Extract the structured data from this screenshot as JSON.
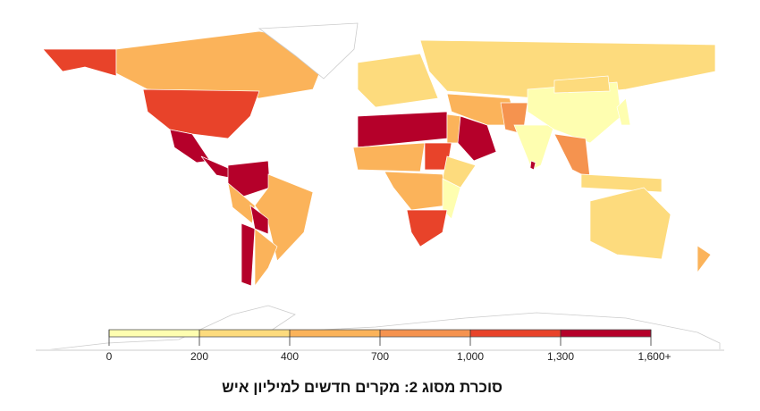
{
  "legend": {
    "ticks": [
      "0",
      "200",
      "400",
      "700",
      "1,000",
      "1,300",
      "1,600+"
    ],
    "colors": [
      "#fefeb0",
      "#fddb7d",
      "#fbb35a",
      "#f5934f",
      "#e8432a",
      "#b5002a"
    ]
  },
  "title": "סוכרת מסוג 2: מקרים חדשים למיליון איש",
  "no_data_color": "#ffffff",
  "regions": [
    {
      "id": "alaska",
      "bin": 4
    },
    {
      "id": "canada",
      "bin": 2
    },
    {
      "id": "usa",
      "bin": 4
    },
    {
      "id": "mexico",
      "bin": 5
    },
    {
      "id": "central-america",
      "bin": 5
    },
    {
      "id": "north-south-america",
      "bin": 5
    },
    {
      "id": "brazil",
      "bin": 2
    },
    {
      "id": "peru",
      "bin": 2
    },
    {
      "id": "bolivia",
      "bin": 5
    },
    {
      "id": "chile",
      "bin": 5
    },
    {
      "id": "argentina",
      "bin": 2
    },
    {
      "id": "europe",
      "bin": 1
    },
    {
      "id": "russia",
      "bin": 1
    },
    {
      "id": "north-africa",
      "bin": 5
    },
    {
      "id": "egypt",
      "bin": 2
    },
    {
      "id": "saudi-arabia",
      "bin": 5
    },
    {
      "id": "west-africa",
      "bin": 2
    },
    {
      "id": "sudan",
      "bin": 4
    },
    {
      "id": "horn-of-africa",
      "bin": 1
    },
    {
      "id": "central-africa",
      "bin": 2
    },
    {
      "id": "east-africa",
      "bin": 0
    },
    {
      "id": "southern-africa",
      "bin": 4
    },
    {
      "id": "middle-east",
      "bin": 2
    },
    {
      "id": "pakistan",
      "bin": 3
    },
    {
      "id": "india",
      "bin": 0
    },
    {
      "id": "china",
      "bin": 0
    },
    {
      "id": "mongolia",
      "bin": 1
    },
    {
      "id": "southeast-asia",
      "bin": 3
    },
    {
      "id": "indonesia",
      "bin": 1
    },
    {
      "id": "australia",
      "bin": 1
    },
    {
      "id": "new-zealand",
      "bin": 2
    },
    {
      "id": "japan",
      "bin": 0
    },
    {
      "id": "sri-lanka",
      "bin": 5
    }
  ]
}
